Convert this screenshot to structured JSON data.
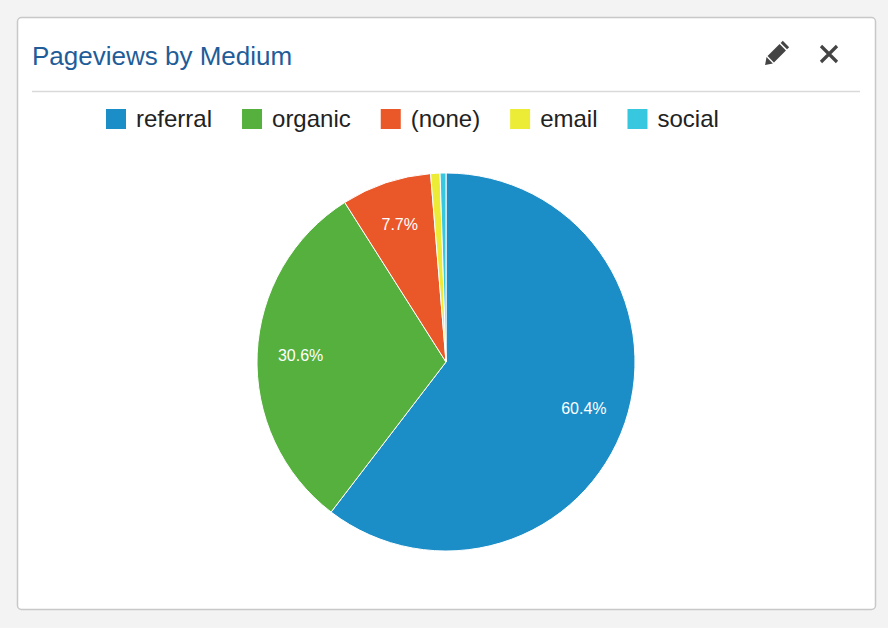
{
  "chart_data": {
    "type": "pie",
    "title": "Pageviews by Medium",
    "categories": [
      "referral",
      "organic",
      "(none)",
      "email",
      "social"
    ],
    "values": [
      60.4,
      30.6,
      7.7,
      0.8,
      0.5
    ],
    "value_labels": [
      "60.4%",
      "30.6%",
      "7.7%",
      null,
      null
    ],
    "colors": [
      "#1b8dc7",
      "#56b03e",
      "#ea5729",
      "#ecec37",
      "#37c8e0"
    ],
    "data_labels": true,
    "legend": "top"
  }
}
